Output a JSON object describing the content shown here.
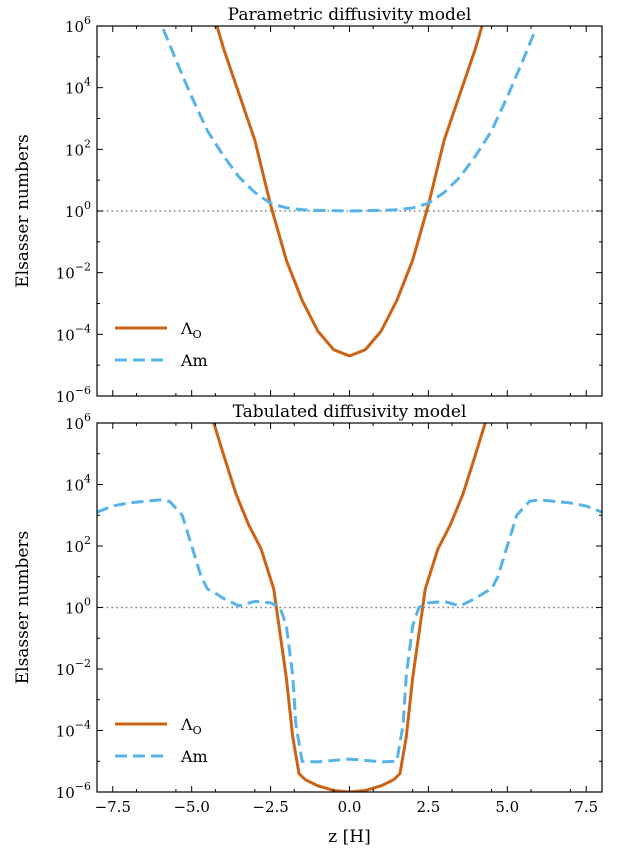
{
  "chart_data": [
    {
      "type": "line",
      "title": "Parametric diffusivity model",
      "ylabel": "Elsasser numbers",
      "xlabel": "",
      "yscale": "log",
      "xlim": [
        -8,
        8
      ],
      "ylim": [
        1e-06,
        1000000.0
      ],
      "x_ticks": [
        -7.5,
        -5.0,
        -2.5,
        0.0,
        2.5,
        5.0,
        7.5
      ],
      "x_tick_labels": [
        "",
        "",
        "",
        "",
        "",
        "",
        ""
      ],
      "y_ticks": [
        1e-06,
        0.0001,
        0.01,
        1.0,
        100.0,
        10000.0,
        1000000.0
      ],
      "y_tick_labels": [
        {
          "base": "10",
          "exp": "−6"
        },
        {
          "base": "10",
          "exp": "−4"
        },
        {
          "base": "10",
          "exp": "−2"
        },
        {
          "base": "10",
          "exp": "0"
        },
        {
          "base": "10",
          "exp": "2"
        },
        {
          "base": "10",
          "exp": "4"
        },
        {
          "base": "10",
          "exp": "6"
        }
      ],
      "reference_line": {
        "y": 1,
        "style": "dotted",
        "color": "#808080"
      },
      "legend": {
        "placement": "lower-left",
        "entries": [
          {
            "label_main": "Λ",
            "label_sub": "O",
            "series": "lambda_o"
          },
          {
            "label_main": "Am",
            "label_sub": "",
            "series": "am"
          }
        ]
      },
      "series": [
        {
          "name": "Λ_O",
          "key": "lambda_o",
          "color": "#cc6314",
          "style": "solid",
          "x": [
            -4.2,
            -4.0,
            -3.5,
            -3.0,
            -2.5,
            -2.0,
            -1.5,
            -1.0,
            -0.5,
            0.0,
            0.5,
            1.0,
            1.5,
            2.0,
            2.5,
            3.0,
            3.5,
            4.0,
            4.2
          ],
          "log10_y": [
            6.0,
            5.3,
            3.8,
            2.3,
            0.2,
            -1.6,
            -2.9,
            -3.9,
            -4.5,
            -4.7,
            -4.5,
            -3.9,
            -2.9,
            -1.6,
            0.2,
            2.3,
            3.8,
            5.3,
            6.0
          ]
        },
        {
          "name": "Am",
          "key": "am",
          "color": "#56b4e9",
          "style": "dashed",
          "x": [
            -5.9,
            -5.5,
            -5.0,
            -4.5,
            -4.0,
            -3.5,
            -3.0,
            -2.5,
            -2.0,
            -1.5,
            -1.0,
            0.0,
            1.0,
            1.5,
            2.0,
            2.5,
            3.0,
            3.5,
            4.0,
            4.5,
            5.0,
            5.5,
            5.9
          ],
          "log10_y": [
            5.9,
            4.9,
            3.7,
            2.6,
            1.8,
            1.1,
            0.6,
            0.25,
            0.1,
            0.04,
            0.02,
            0.0,
            0.02,
            0.04,
            0.1,
            0.25,
            0.6,
            1.1,
            1.8,
            2.6,
            3.7,
            4.9,
            5.9
          ]
        }
      ]
    },
    {
      "type": "line",
      "title": "Tabulated diffusivity model",
      "ylabel": "Elsasser numbers",
      "xlabel": "z [H]",
      "yscale": "log",
      "xlim": [
        -8,
        8
      ],
      "ylim": [
        1e-06,
        1000000.0
      ],
      "x_ticks": [
        -7.5,
        -5.0,
        -2.5,
        0.0,
        2.5,
        5.0,
        7.5
      ],
      "x_tick_labels": [
        "−7.5",
        "−5.0",
        "−2.5",
        "0.0",
        "2.5",
        "5.0",
        "7.5"
      ],
      "y_ticks": [
        1e-06,
        0.0001,
        0.01,
        1.0,
        100.0,
        10000.0,
        1000000.0
      ],
      "y_tick_labels": [
        {
          "base": "10",
          "exp": "−6"
        },
        {
          "base": "10",
          "exp": "−4"
        },
        {
          "base": "10",
          "exp": "−2"
        },
        {
          "base": "10",
          "exp": "0"
        },
        {
          "base": "10",
          "exp": "2"
        },
        {
          "base": "10",
          "exp": "4"
        },
        {
          "base": "10",
          "exp": "6"
        }
      ],
      "reference_line": {
        "y": 1,
        "style": "dotted",
        "color": "#808080"
      },
      "legend": {
        "placement": "lower-left",
        "entries": [
          {
            "label_main": "Λ",
            "label_sub": "O",
            "series": "lambda_o"
          },
          {
            "label_main": "Am",
            "label_sub": "",
            "series": "am"
          }
        ]
      },
      "series": [
        {
          "name": "Λ_O",
          "key": "lambda_o",
          "color": "#cc6314",
          "style": "solid",
          "x": [
            -4.3,
            -4.0,
            -3.6,
            -3.2,
            -2.8,
            -2.4,
            -2.0,
            -1.8,
            -1.6,
            -1.4,
            -1.0,
            -0.5,
            0.0,
            0.5,
            1.0,
            1.4,
            1.6,
            1.8,
            2.0,
            2.4,
            2.8,
            3.2,
            3.6,
            4.0,
            4.3
          ],
          "log10_y": [
            6.0,
            5.0,
            3.7,
            2.7,
            1.9,
            0.6,
            -2.3,
            -4.2,
            -5.4,
            -5.6,
            -5.8,
            -5.95,
            -6.0,
            -5.95,
            -5.8,
            -5.6,
            -5.4,
            -4.2,
            -2.3,
            0.6,
            1.9,
            2.7,
            3.7,
            5.0,
            6.0
          ]
        },
        {
          "name": "Am",
          "key": "am",
          "color": "#56b4e9",
          "style": "dashed",
          "x": [
            -8.0,
            -7.5,
            -7.0,
            -6.5,
            -6.0,
            -5.7,
            -5.3,
            -5.0,
            -4.7,
            -4.5,
            -4.3,
            -4.0,
            -3.5,
            -3.0,
            -2.5,
            -2.2,
            -2.0,
            -1.8,
            -1.7,
            -1.5,
            -1.0,
            -0.5,
            0.0,
            0.5,
            1.0,
            1.5,
            1.7,
            1.8,
            2.0,
            2.2,
            2.5,
            3.0,
            3.5,
            4.0,
            4.3,
            4.5,
            4.7,
            5.0,
            5.3,
            5.7,
            6.0,
            6.5,
            7.0,
            7.5,
            8.0
          ],
          "log10_y": [
            3.1,
            3.3,
            3.4,
            3.45,
            3.5,
            3.45,
            3.0,
            2.0,
            1.0,
            0.6,
            0.5,
            0.3,
            0.05,
            0.2,
            0.15,
            0.0,
            -0.6,
            -2.2,
            -3.8,
            -5.0,
            -5.02,
            -4.97,
            -4.93,
            -4.97,
            -5.02,
            -5.0,
            -3.8,
            -2.2,
            -0.6,
            0.0,
            0.15,
            0.2,
            0.05,
            0.3,
            0.5,
            0.6,
            1.0,
            2.0,
            3.0,
            3.45,
            3.5,
            3.45,
            3.4,
            3.3,
            3.1
          ]
        }
      ]
    }
  ]
}
